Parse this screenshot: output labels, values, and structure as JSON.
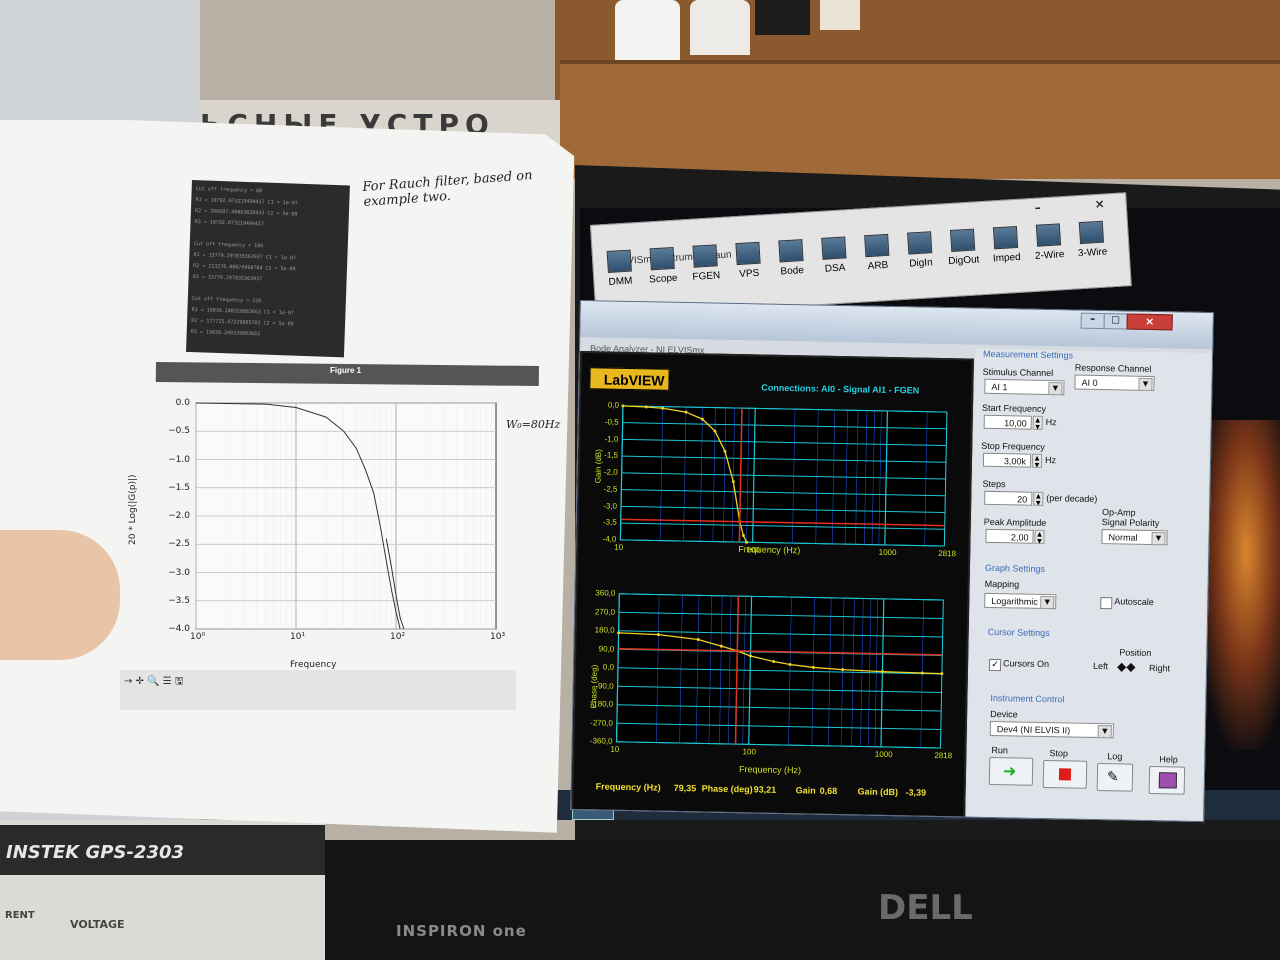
{
  "environment": {
    "wall_sign": "ЬСНЫЕ  УСТРО",
    "monitor_brand": "DELL",
    "pc_model": "INSPIRON one",
    "psu_brand": "INSTEK  GPS-2303",
    "psu_label_current": "RENT",
    "psu_label_voltage": "VOLTAGE"
  },
  "launcher": {
    "title": "VISmx Instrument Laun",
    "minimize": "–",
    "close": "×",
    "buttons": [
      {
        "label": "DMM",
        "icon": "dmm-icon"
      },
      {
        "label": "Scope",
        "icon": "scope-icon"
      },
      {
        "label": "FGEN",
        "icon": "fgen-icon"
      },
      {
        "label": "VPS",
        "icon": "vps-icon"
      },
      {
        "label": "Bode",
        "icon": "bode-icon"
      },
      {
        "label": "DSA",
        "icon": "dsa-icon"
      },
      {
        "label": "ARB",
        "icon": "arb-icon"
      },
      {
        "label": "DigIn",
        "icon": "digin-icon"
      },
      {
        "label": "DigOut",
        "icon": "digout-icon"
      },
      {
        "label": "Imped",
        "icon": "imped-icon"
      },
      {
        "label": "2-Wire",
        "icon": "two-wire-icon"
      },
      {
        "label": "3-Wire",
        "icon": "three-wire-icon"
      }
    ]
  },
  "window": {
    "title": "Bode Analyzer - NI ELVISmx",
    "min": "–",
    "max": "□",
    "close": "×",
    "logo": "LabVIEW",
    "connections": "Connections: AI0 - Signal    AI1 - FGEN",
    "readouts": {
      "freq_label": "Frequency (Hz)",
      "freq_value": "79,35",
      "phase_label": "Phase (deg)",
      "phase_value": "93,21",
      "gain_label": "Gain",
      "gain_value": "0,68",
      "gaindb_label": "Gain (dB)",
      "gaindb_value": "-3,39"
    }
  },
  "settings": {
    "measurement_title": "Measurement Settings",
    "stimulus_label": "Stimulus Channel",
    "stimulus_value": "AI 1",
    "response_label": "Response Channel",
    "response_value": "AI 0",
    "start_label": "Start Frequency",
    "start_value": "10,00",
    "start_unit": "Hz",
    "stop_label": "Stop Frequency",
    "stop_value": "3,00k",
    "stop_unit": "Hz",
    "steps_label": "Steps",
    "steps_value": "20",
    "steps_unit": "(per decade)",
    "opamp_label_1": "Op-Amp",
    "opamp_label_2": "Signal Polarity",
    "opamp_value": "Normal",
    "amp_label": "Peak Amplitude",
    "amp_value": "2,00",
    "graph_title": "Graph Settings",
    "mapping_label": "Mapping",
    "mapping_value": "Logarithmic",
    "autoscale_label": "Autoscale",
    "autoscale_checked": false,
    "cursor_title": "Cursor Settings",
    "cursors_label": "Cursors On",
    "cursors_checked": true,
    "position_label": "Position",
    "left_label": "Left",
    "right_label": "Right",
    "instrument_title": "Instrument Control",
    "device_label": "Device",
    "device_value": "Dev4 (NI ELVIS II)",
    "run_label": "Run",
    "stop_btn_label": "Stop",
    "log_label": "Log",
    "help_label": "Help"
  },
  "paper": {
    "code_lines": [
      "Cut off frequency = 80",
      "R1 = 19792.073219494417 C1 = 1e-07",
      "R2 = 266697.40863626933 C2 = 5e-09",
      "R3 = 19792.073219494417",
      "",
      "Cut off frequency = 100",
      "R1 = 15779.297835363937 C1 = 1e-07",
      "R2 = 213276.08674998784 C2 = 5e-09",
      "R3 = 15779.297835363937",
      "",
      "Cut off frequency = 120",
      "R1 = 19839.248329663663 C1 = 1e-07",
      "R2 = 177725.07229865702 C2 = 5e-09",
      "R3 = 19839.248329663663"
    ],
    "handwritten_note": "For Rauch filter, based on example two.",
    "figure_title": "Figure 1",
    "w0_note": "W₀=80Hz",
    "figure_tools": "→ ✛ 🔍 ☰   🖫"
  },
  "chart_data": [
    {
      "type": "line",
      "title": "",
      "xlabel": "Frequency",
      "ylabel": "20 * Log(|G(p)|)",
      "x_scale": "log",
      "xlim": [
        1,
        1000
      ],
      "ylim": [
        -4.0,
        0.0
      ],
      "yticks": [
        "0.0",
        "−0.5",
        "−1.0",
        "−1.5",
        "−2.0",
        "−2.5",
        "−3.0",
        "−3.5",
        "−4.0"
      ],
      "xticks": [
        "10⁰",
        "10¹",
        "10²",
        "10³"
      ],
      "grid": true,
      "series": [
        {
          "x": [
            1,
            5,
            10,
            20,
            30,
            40,
            50,
            60,
            70,
            80,
            90,
            100,
            105,
            110
          ],
          "y": [
            0.0,
            -0.02,
            -0.08,
            -0.25,
            -0.5,
            -0.8,
            -1.2,
            -1.6,
            -2.2,
            -2.8,
            -3.3,
            -3.7,
            -3.85,
            -4.0
          ]
        },
        {
          "x": [
            80,
            90,
            100,
            110,
            120
          ],
          "y": [
            -2.4,
            -2.9,
            -3.4,
            -3.8,
            -4.0
          ]
        }
      ]
    },
    {
      "type": "line",
      "title": "",
      "xlabel": "Frequency (Hz)",
      "ylabel": "Gain (dB)",
      "x_scale": "log",
      "xlim": [
        10,
        2818
      ],
      "ylim": [
        -4.0,
        0.0
      ],
      "yticks": [
        "0,0",
        "-0,5",
        "-1,0",
        "-1,5",
        "-2,0",
        "-2,5",
        "-3,0",
        "-3,5",
        "-4,0"
      ],
      "xticks": [
        "10",
        "100",
        "1000",
        "2818"
      ],
      "cursor_x": 79.35,
      "cursor_y": -3.39,
      "series": [
        {
          "x": [
            10,
            15,
            20,
            30,
            40,
            50,
            60,
            70,
            79.35,
            85,
            90
          ],
          "y": [
            0.0,
            -0.02,
            -0.05,
            -0.15,
            -0.35,
            -0.7,
            -1.3,
            -2.2,
            -3.39,
            -3.8,
            -4.0
          ]
        }
      ]
    },
    {
      "type": "line",
      "title": "",
      "xlabel": "Frequency (Hz)",
      "ylabel": "Phase (deg)",
      "x_scale": "log",
      "xlim": [
        10,
        2818
      ],
      "ylim": [
        -360,
        360
      ],
      "yticks": [
        "360,0",
        "270,0",
        "180,0",
        "90,0",
        "0,0",
        "-90,0",
        "-180,0",
        "-270,0",
        "-360,0"
      ],
      "xticks": [
        "10",
        "100",
        "1000",
        "2818"
      ],
      "cursor_x": 79.35,
      "cursor_y": 93.21,
      "series": [
        {
          "x": [
            10,
            20,
            40,
            60,
            79.35,
            100,
            150,
            200,
            300,
            500,
            1000,
            2000,
            2818
          ],
          "y": [
            170,
            165,
            145,
            115,
            93.21,
            70,
            45,
            32,
            20,
            12,
            6,
            3,
            2
          ]
        }
      ]
    }
  ]
}
